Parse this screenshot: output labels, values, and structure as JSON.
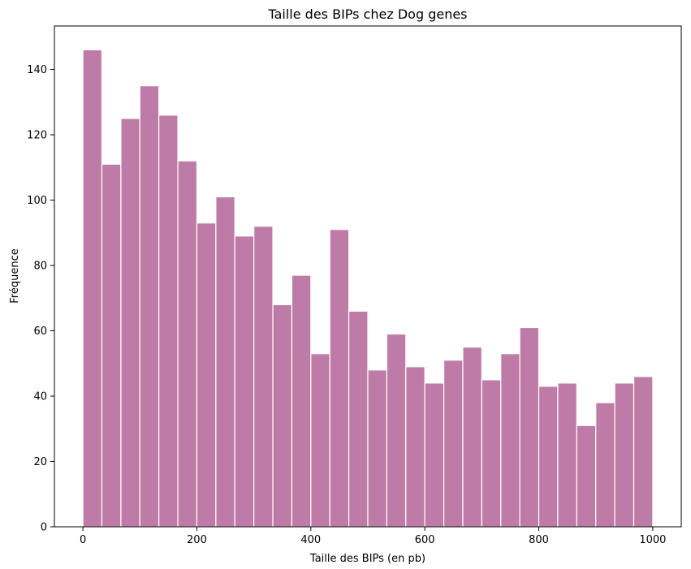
{
  "chart_data": {
    "type": "bar",
    "title": "Taille des BIPs chez Dog genes",
    "xlabel": "Taille des BIPs (en pb)",
    "ylabel": "Fréquence",
    "bin_width": 33.33,
    "bin_starts": [
      0,
      33.33,
      66.67,
      100,
      133.33,
      166.67,
      200,
      233.33,
      266.67,
      300,
      333.33,
      366.67,
      400,
      433.33,
      466.67,
      500,
      533.33,
      566.67,
      600,
      633.33,
      666.67,
      700,
      733.33,
      766.67,
      800,
      833.33,
      866.67,
      900,
      933.33,
      966.67
    ],
    "values": [
      146,
      111,
      125,
      135,
      126,
      112,
      93,
      101,
      89,
      92,
      68,
      77,
      53,
      91,
      66,
      48,
      59,
      49,
      44,
      51,
      55,
      45,
      53,
      61,
      43,
      44,
      31,
      38,
      44,
      46
    ],
    "xlim": [
      -50,
      1050
    ],
    "ylim": [
      0,
      153.3
    ],
    "xticks": [
      0,
      200,
      400,
      600,
      800,
      1000
    ],
    "yticks": [
      0,
      20,
      40,
      60,
      80,
      100,
      120,
      140
    ],
    "bar_color": "#bf7ba7",
    "edge_color": "#ffffff",
    "grid": false,
    "legend": false
  }
}
